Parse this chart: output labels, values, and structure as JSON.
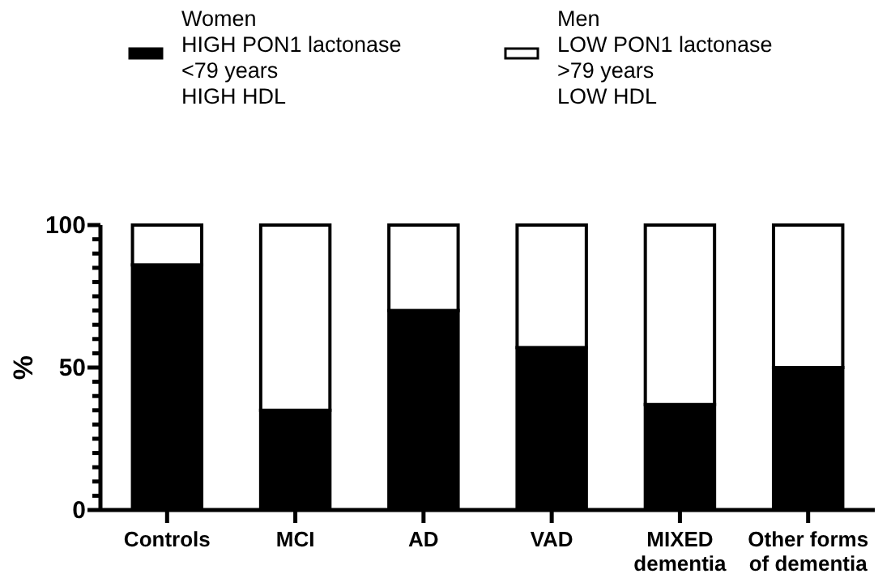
{
  "chart_data": {
    "type": "bar",
    "stacked": true,
    "ylabel": "%",
    "categories": [
      "Controls",
      "MCI",
      "AD",
      "VAD",
      "MIXED dementia",
      "Other forms of dementia"
    ],
    "series": [
      {
        "name": "Women\nHIGH PON1 lactonase\n<79 years\nHIGH HDL",
        "color": "#000000",
        "values": [
          86,
          35,
          70,
          57,
          37,
          50
        ]
      },
      {
        "name": "Men\nLOW PON1 lactonase\n>79 years\nLOW HDL",
        "color": "#ffffff",
        "values": [
          14,
          65,
          30,
          43,
          63,
          50
        ]
      }
    ],
    "ylim": [
      0,
      100
    ],
    "yticks": [
      0,
      {
        "value": 5,
        "label": null
      },
      {
        "value": 10,
        "label": null
      },
      {
        "value": 15,
        "label": null
      },
      {
        "value": 20,
        "label": null
      },
      {
        "value": 25,
        "label": null
      },
      {
        "value": 30,
        "label": null
      },
      {
        "value": 35,
        "label": null
      },
      {
        "value": 40,
        "label": null
      },
      {
        "value": 45,
        "label": null
      },
      50,
      {
        "value": 55,
        "label": null
      },
      {
        "value": 60,
        "label": null
      },
      {
        "value": 65,
        "label": null
      },
      {
        "value": 70,
        "label": null
      },
      {
        "value": 75,
        "label": null
      },
      {
        "value": 80,
        "label": null
      },
      {
        "value": 85,
        "label": null
      },
      {
        "value": 90,
        "label": null
      },
      {
        "value": 95,
        "label": null
      },
      100
    ],
    "grid": false,
    "legend": "top"
  }
}
